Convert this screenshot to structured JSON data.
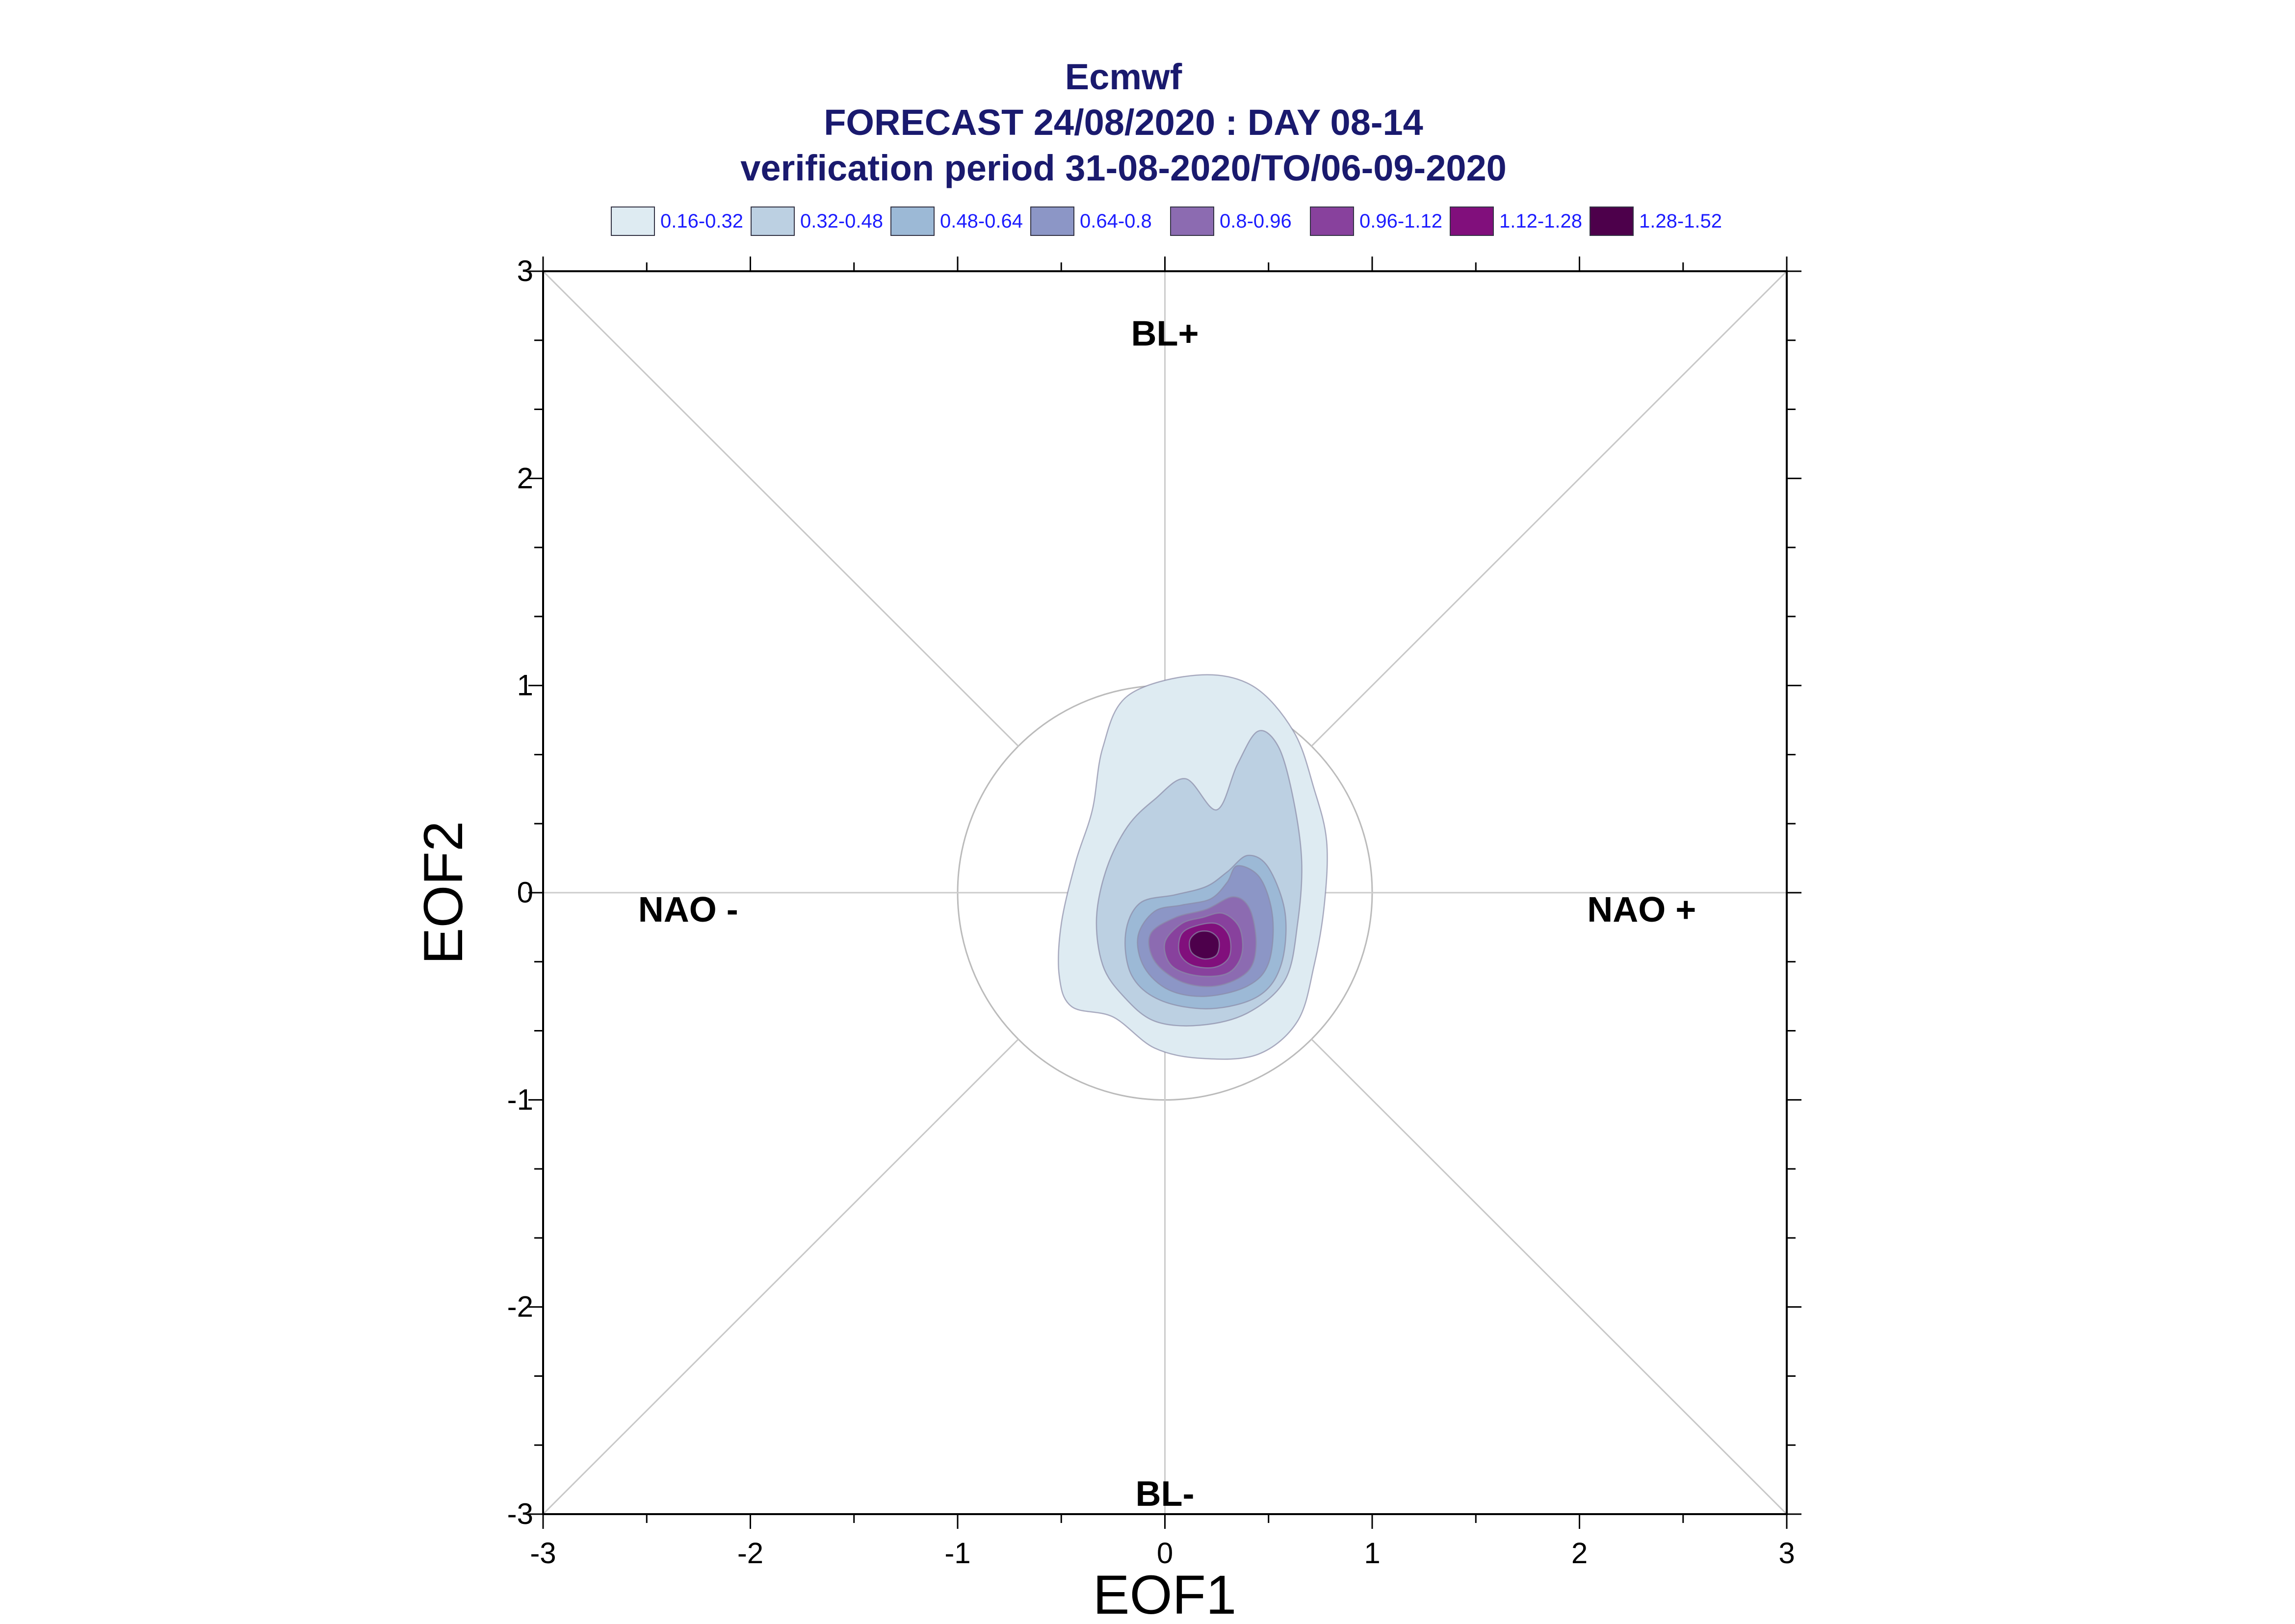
{
  "chart_data": {
    "type": "contour",
    "title_lines": [
      "Ecmwf",
      "FORECAST 24/08/2020 : DAY 08-14",
      "verification period 31-08-2020/TO/06-09-2020"
    ],
    "xlabel": "EOF1",
    "ylabel": "EOF2",
    "xlim": [
      -3,
      3
    ],
    "ylim": [
      -3,
      3
    ],
    "xticks": [
      "-3",
      "-2",
      "-1",
      "0",
      "1",
      "2",
      "3"
    ],
    "yticks": [
      "-3",
      "-2",
      "-1",
      "0",
      "1",
      "2",
      "3"
    ],
    "legend_position": "top",
    "legend": [
      {
        "label": "0.16-0.32",
        "color": "#deebf2"
      },
      {
        "label": "0.32-0.48",
        "color": "#bcd0e2"
      },
      {
        "label": "0.48-0.64",
        "color": "#9cb9d6"
      },
      {
        "label": "0.64-0.8",
        "color": "#8c96c6"
      },
      {
        "label": "0.8-0.96",
        "color": "#8c6bb1"
      },
      {
        "label": "0.96-1.12",
        "color": "#88419d"
      },
      {
        "label": "1.12-1.28",
        "color": "#810f7c"
      },
      {
        "label": "1.28-1.52",
        "color": "#4d004b"
      }
    ],
    "region_labels": [
      {
        "text": "BL+",
        "x": 0,
        "y": 2.7
      },
      {
        "text": "BL-",
        "x": 0,
        "y": -2.9
      },
      {
        "text": "NAO -",
        "x": -2.3,
        "y": -0.08
      },
      {
        "text": "NAO +",
        "x": 2.3,
        "y": -0.08
      }
    ],
    "unit_circle_radius": 1,
    "density_center": [
      0.18,
      -0.25
    ],
    "contours": [
      {
        "level": "0.16-0.32",
        "points": [
          [
            0.15,
            1.05
          ],
          [
            0.42,
            1.0
          ],
          [
            0.62,
            0.78
          ],
          [
            0.72,
            0.5
          ],
          [
            0.78,
            0.25
          ],
          [
            0.77,
            -0.05
          ],
          [
            0.72,
            -0.35
          ],
          [
            0.64,
            -0.62
          ],
          [
            0.45,
            -0.78
          ],
          [
            0.18,
            -0.8
          ],
          [
            -0.05,
            -0.75
          ],
          [
            -0.25,
            -0.6
          ],
          [
            -0.45,
            -0.55
          ],
          [
            -0.51,
            -0.4
          ],
          [
            -0.5,
            -0.15
          ],
          [
            -0.43,
            0.15
          ],
          [
            -0.35,
            0.4
          ],
          [
            -0.3,
            0.7
          ],
          [
            -0.18,
            0.95
          ]
        ]
      },
      {
        "level": "0.32-0.48",
        "points": [
          [
            0.45,
            0.78
          ],
          [
            0.55,
            0.7
          ],
          [
            0.62,
            0.45
          ],
          [
            0.66,
            0.15
          ],
          [
            0.64,
            -0.15
          ],
          [
            0.58,
            -0.42
          ],
          [
            0.4,
            -0.58
          ],
          [
            0.17,
            -0.64
          ],
          [
            -0.05,
            -0.62
          ],
          [
            -0.2,
            -0.5
          ],
          [
            -0.3,
            -0.35
          ],
          [
            -0.33,
            -0.12
          ],
          [
            -0.28,
            0.12
          ],
          [
            -0.18,
            0.32
          ],
          [
            -0.05,
            0.45
          ],
          [
            0.1,
            0.55
          ],
          [
            0.25,
            0.4
          ],
          [
            0.35,
            0.62
          ]
        ]
      },
      {
        "level": "0.48-0.64",
        "points": [
          [
            0.4,
            0.18
          ],
          [
            0.5,
            0.12
          ],
          [
            0.58,
            -0.1
          ],
          [
            0.56,
            -0.35
          ],
          [
            0.45,
            -0.5
          ],
          [
            0.22,
            -0.56
          ],
          [
            -0.02,
            -0.52
          ],
          [
            -0.16,
            -0.4
          ],
          [
            -0.19,
            -0.2
          ],
          [
            -0.12,
            -0.05
          ],
          [
            0.05,
            -0.01
          ],
          [
            0.2,
            0.03
          ],
          [
            0.3,
            0.1
          ]
        ]
      },
      {
        "level": "0.64-0.8",
        "points": [
          [
            0.35,
            0.13
          ],
          [
            0.46,
            0.07
          ],
          [
            0.52,
            -0.12
          ],
          [
            0.5,
            -0.34
          ],
          [
            0.4,
            -0.45
          ],
          [
            0.2,
            -0.5
          ],
          [
            0.02,
            -0.47
          ],
          [
            -0.1,
            -0.36
          ],
          [
            -0.13,
            -0.21
          ],
          [
            -0.05,
            -0.09
          ],
          [
            0.08,
            -0.06
          ],
          [
            0.22,
            -0.03
          ],
          [
            0.3,
            0.05
          ]
        ]
      },
      {
        "level": "0.8-0.96",
        "points": [
          [
            0.33,
            -0.02
          ],
          [
            0.41,
            -0.08
          ],
          [
            0.44,
            -0.25
          ],
          [
            0.4,
            -0.38
          ],
          [
            0.25,
            -0.45
          ],
          [
            0.08,
            -0.43
          ],
          [
            -0.05,
            -0.33
          ],
          [
            -0.07,
            -0.2
          ],
          [
            0.05,
            -0.12
          ],
          [
            0.2,
            -0.08
          ]
        ]
      },
      {
        "level": "0.96-1.12",
        "points": [
          [
            0.28,
            -0.1
          ],
          [
            0.36,
            -0.17
          ],
          [
            0.37,
            -0.3
          ],
          [
            0.3,
            -0.39
          ],
          [
            0.15,
            -0.4
          ],
          [
            0.03,
            -0.35
          ],
          [
            0.0,
            -0.24
          ],
          [
            0.08,
            -0.15
          ],
          [
            0.18,
            -0.12
          ]
        ]
      },
      {
        "level": "1.12-1.28",
        "points": [
          [
            0.25,
            -0.15
          ],
          [
            0.31,
            -0.21
          ],
          [
            0.31,
            -0.31
          ],
          [
            0.24,
            -0.36
          ],
          [
            0.13,
            -0.35
          ],
          [
            0.07,
            -0.29
          ],
          [
            0.08,
            -0.2
          ],
          [
            0.15,
            -0.16
          ]
        ]
      },
      {
        "level": "1.28-1.52",
        "points": [
          [
            0.22,
            -0.19
          ],
          [
            0.26,
            -0.23
          ],
          [
            0.25,
            -0.3
          ],
          [
            0.19,
            -0.32
          ],
          [
            0.13,
            -0.29
          ],
          [
            0.12,
            -0.23
          ],
          [
            0.16,
            -0.19
          ]
        ]
      }
    ]
  }
}
